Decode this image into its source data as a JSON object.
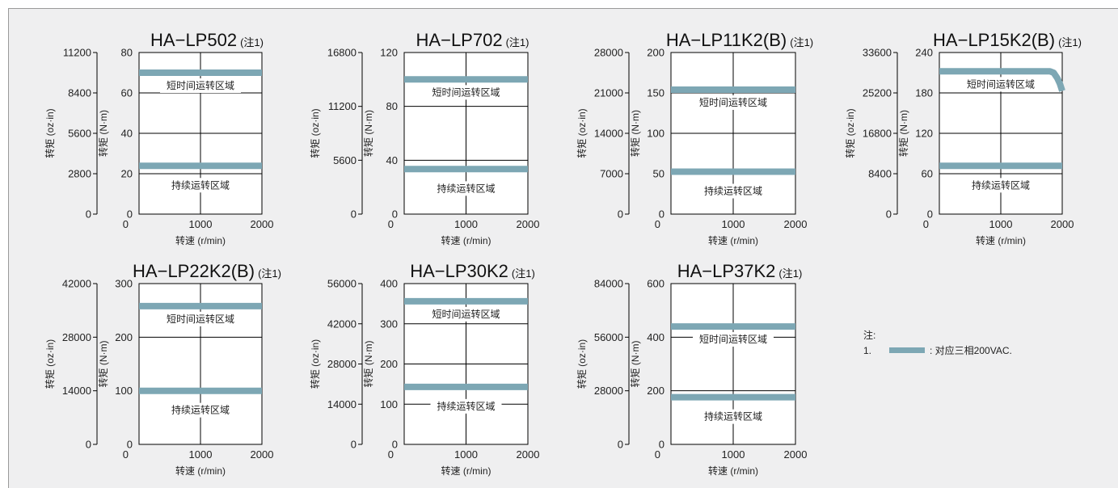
{
  "colors": {
    "curve": "#7da7b4",
    "axis": "#000000",
    "text": "#222222",
    "panel": "#efeff0"
  },
  "note": {
    "title": "注:",
    "item_number": "1.",
    "item_text": ": 对应三相200VAC."
  },
  "chart_data": [
    {
      "type": "line",
      "title": "HA−LP502",
      "title_note": "(注1)",
      "xlabel": "转速 (r/min)",
      "ylabel_right": "转矩 (N·m)",
      "ylabel_left": "转矩 (oz·in)",
      "xlim": [
        0,
        2000
      ],
      "xticks": [
        "0",
        "1000",
        "2000"
      ],
      "ylim": [
        0,
        80
      ],
      "yticks": [
        "0",
        "20",
        "40",
        "60",
        "80"
      ],
      "oz_ticks": [
        "0",
        "2800",
        "5600",
        "8400",
        "11200"
      ],
      "gridlines": [
        20,
        40,
        60
      ],
      "region_short": "短时间运转区域",
      "region_continuous": "持续运转区域",
      "series": [
        {
          "points": [
            [
              0,
              70
            ],
            [
              2000,
              70
            ]
          ]
        },
        {
          "points": [
            [
              0,
              23.9
            ],
            [
              2000,
              23.9
            ]
          ]
        }
      ]
    },
    {
      "type": "line",
      "title": "HA−LP702",
      "title_note": "(注1)",
      "xlabel": "转速 (r/min)",
      "ylabel_right": "转矩 (N·m)",
      "ylabel_left": "转矩 (oz·in)",
      "xlim": [
        0,
        2000
      ],
      "xticks": [
        "0",
        "1000",
        "2000"
      ],
      "ylim": [
        0,
        120
      ],
      "yticks": [
        "0",
        "40",
        "80",
        "120"
      ],
      "oz_ticks": [
        "0",
        "5600",
        "11200",
        "16800"
      ],
      "gridlines": [
        40,
        80
      ],
      "region_short": "短时间运转区域",
      "region_continuous": "持续运转区域",
      "series": [
        {
          "points": [
            [
              0,
              100
            ],
            [
              2000,
              100
            ]
          ]
        },
        {
          "points": [
            [
              0,
              33.4
            ],
            [
              2000,
              33.4
            ]
          ]
        }
      ]
    },
    {
      "type": "line",
      "title": "HA−LP11K2(B)",
      "title_note": "(注1)",
      "xlabel": "转速 (r/min)",
      "ylabel_right": "转矩 (N·m)",
      "ylabel_left": "转矩 (oz·in)",
      "xlim": [
        0,
        2000
      ],
      "xticks": [
        "0",
        "1000",
        "2000"
      ],
      "ylim": [
        0,
        200
      ],
      "yticks": [
        "0",
        "50",
        "100",
        "150",
        "200"
      ],
      "oz_ticks": [
        "0",
        "7000",
        "14000",
        "21000",
        "28000"
      ],
      "gridlines": [
        50,
        100,
        150
      ],
      "region_short": "短时间运转区域",
      "region_continuous": "持续运转区域",
      "series": [
        {
          "points": [
            [
              0,
              154
            ],
            [
              2000,
              154
            ]
          ]
        },
        {
          "points": [
            [
              0,
              52.5
            ],
            [
              2000,
              52.5
            ]
          ]
        }
      ]
    },
    {
      "type": "line",
      "title": "HA−LP15K2(B)",
      "title_note": "(注1)",
      "xlabel": "转速 (r/min)",
      "ylabel_right": "转矩 (N·m)",
      "ylabel_left": "转矩 (oz·in)",
      "xlim": [
        0,
        2000
      ],
      "xticks": [
        "0",
        "1000",
        "2000"
      ],
      "ylim": [
        0,
        240
      ],
      "yticks": [
        "0",
        "60",
        "120",
        "180",
        "240"
      ],
      "oz_ticks": [
        "0",
        "8400",
        "16800",
        "25200",
        "33600"
      ],
      "gridlines": [
        60,
        120,
        180
      ],
      "region_short": "短时间运转区域",
      "region_continuous": "持续运转区域",
      "series": [
        {
          "points": [
            [
              0,
              212
            ],
            [
              1800,
              212
            ],
            [
              1860,
              210
            ],
            [
              1920,
              202
            ],
            [
              1960,
              194
            ],
            [
              2000,
              183
            ]
          ]
        },
        {
          "points": [
            [
              0,
              71.6
            ],
            [
              2000,
              71.6
            ]
          ]
        }
      ]
    },
    {
      "type": "line",
      "title": "HA−LP22K2(B)",
      "title_note": "(注1)",
      "xlabel": "转速 (r/min)",
      "ylabel_right": "转矩 (N·m)",
      "ylabel_left": "转矩 (oz·in)",
      "xlim": [
        0,
        2000
      ],
      "xticks": [
        "0",
        "1000",
        "2000"
      ],
      "ylim": [
        0,
        300
      ],
      "yticks": [
        "0",
        "100",
        "200",
        "300"
      ],
      "oz_ticks": [
        "0",
        "14000",
        "28000",
        "42000"
      ],
      "gridlines": [
        100,
        200
      ],
      "region_short": "短时间运转区域",
      "region_continuous": "持续运转区域",
      "series": [
        {
          "points": [
            [
              0,
              258
            ],
            [
              2000,
              258
            ]
          ]
        },
        {
          "points": [
            [
              0,
              100
            ],
            [
              2000,
              100
            ]
          ]
        }
      ]
    },
    {
      "type": "line",
      "title": "HA−LP30K2",
      "title_note": "(注1)",
      "xlabel": "转速 (r/min)",
      "ylabel_right": "转矩 (N·m)",
      "ylabel_left": "转矩 (oz·in)",
      "xlim": [
        0,
        2000
      ],
      "xticks": [
        "0",
        "1000",
        "2000"
      ],
      "ylim": [
        0,
        400
      ],
      "yticks": [
        "0",
        "100",
        "200",
        "300",
        "400"
      ],
      "oz_ticks": [
        "0",
        "14000",
        "28000",
        "42000",
        "56000"
      ],
      "gridlines": [
        100,
        200,
        300
      ],
      "region_short": "短时间运转区域",
      "region_continuous": "持续运转区域",
      "series": [
        {
          "points": [
            [
              0,
              356
            ],
            [
              2000,
              356
            ]
          ]
        },
        {
          "points": [
            [
              0,
              143
            ],
            [
              2000,
              143
            ]
          ]
        }
      ]
    },
    {
      "type": "line",
      "title": "HA−LP37K2",
      "title_note": "(注1)",
      "xlabel": "转速 (r/min)",
      "ylabel_right": "转矩 (N·m)",
      "ylabel_left": "转矩 (oz·in)",
      "xlim": [
        0,
        2000
      ],
      "xticks": [
        "0",
        "1000",
        "2000"
      ],
      "ylim": [
        0,
        600
      ],
      "yticks": [
        "0",
        "200",
        "400",
        "600"
      ],
      "oz_ticks": [
        "0",
        "28000",
        "56000",
        "84000"
      ],
      "gridlines": [
        200,
        400
      ],
      "region_short": "短时间运转区域",
      "region_continuous": "持续运转区域",
      "series": [
        {
          "points": [
            [
              0,
              440
            ],
            [
              2000,
              440
            ]
          ]
        },
        {
          "points": [
            [
              0,
              176
            ],
            [
              2000,
              176
            ]
          ]
        }
      ]
    }
  ]
}
